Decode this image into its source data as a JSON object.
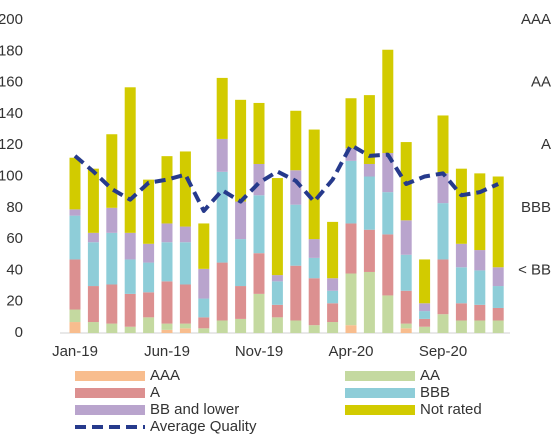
{
  "chart_data": {
    "type": "bar",
    "stacked": true,
    "categories": [
      "Jan-19",
      null,
      null,
      null,
      null,
      "Jun-19",
      null,
      null,
      null,
      null,
      "Nov-19",
      null,
      null,
      null,
      null,
      "Apr-20",
      null,
      null,
      null,
      null,
      "Sep-20",
      null,
      null,
      null
    ],
    "ylim": [
      0,
      200
    ],
    "yticks": [
      0,
      20,
      40,
      60,
      80,
      100,
      120,
      140,
      160,
      180,
      200
    ],
    "y2lim": [
      0,
      5
    ],
    "y2ticks": [
      {
        "value": 1,
        "label": "< BB"
      },
      {
        "value": 2,
        "label": "BBB"
      },
      {
        "value": 3,
        "label": "A"
      },
      {
        "value": 4,
        "label": "AA"
      },
      {
        "value": 5,
        "label": "AAA"
      }
    ],
    "series": [
      {
        "name": "AAA",
        "color": "#f8bd8e",
        "values": [
          7,
          0,
          0,
          0,
          0,
          2,
          3,
          0,
          0,
          0,
          0,
          0,
          0,
          0,
          0,
          5,
          0,
          0,
          3,
          0,
          0,
          0,
          0,
          0
        ]
      },
      {
        "name": "AA",
        "color": "#c4d9a0",
        "values": [
          8,
          7,
          6,
          4,
          10,
          4,
          3,
          3,
          8,
          9,
          25,
          10,
          8,
          5,
          7,
          33,
          39,
          24,
          3,
          4,
          12,
          8,
          8,
          8
        ]
      },
      {
        "name": "A",
        "color": "#dc9090",
        "values": [
          32,
          23,
          25,
          21,
          16,
          27,
          25,
          7,
          37,
          21,
          26,
          8,
          35,
          30,
          12,
          32,
          27,
          39,
          21,
          5,
          35,
          11,
          10,
          8
        ]
      },
      {
        "name": "BBB",
        "color": "#8ecdd8",
        "values": [
          28,
          28,
          33,
          22,
          19,
          25,
          27,
          12,
          58,
          30,
          37,
          15,
          39,
          13,
          8,
          40,
          34,
          27,
          23,
          5,
          36,
          23,
          22,
          14
        ]
      },
      {
        "name": "BB and lower",
        "color": "#b9a4cd",
        "values": [
          4,
          6,
          16,
          17,
          12,
          12,
          10,
          19,
          21,
          24,
          20,
          4,
          22,
          12,
          8,
          8,
          8,
          25,
          22,
          5,
          19,
          15,
          13,
          12
        ]
      },
      {
        "name": "Not rated",
        "color": "#d2cb00",
        "values": [
          33,
          41,
          47,
          93,
          41,
          43,
          48,
          29,
          39,
          65,
          39,
          62,
          38,
          70,
          36,
          32,
          44,
          66,
          50,
          28,
          37,
          48,
          49,
          58
        ]
      },
      {
        "name": "Average Quality",
        "type": "line",
        "axis": "y2",
        "color": "#263a8c",
        "dashed": true,
        "values": [
          2.83,
          2.58,
          2.3,
          2.13,
          2.4,
          2.45,
          2.53,
          1.95,
          2.28,
          2.1,
          2.4,
          2.58,
          2.43,
          2.1,
          2.45,
          3.0,
          2.83,
          2.85,
          2.38,
          2.5,
          2.55,
          2.2,
          2.25,
          2.38
        ]
      }
    ]
  }
}
